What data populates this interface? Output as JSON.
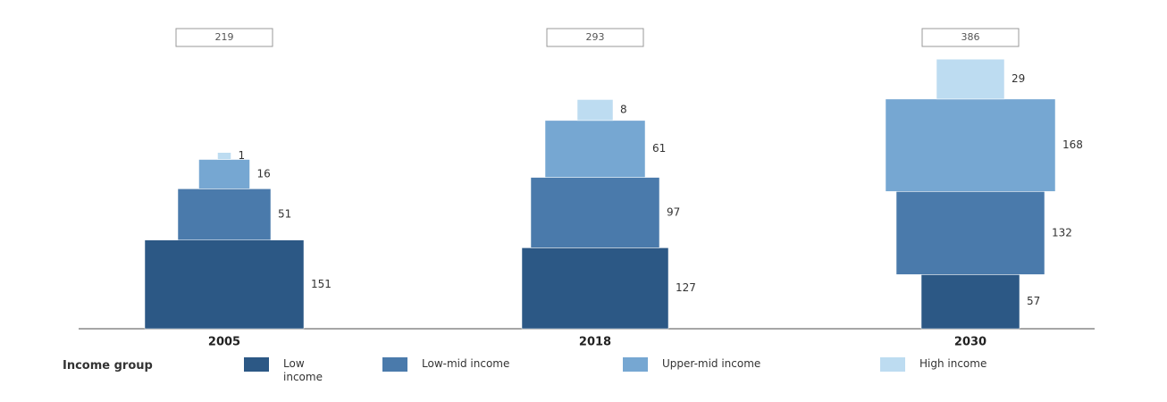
{
  "chart_data": {
    "type": "bar",
    "stacked": true,
    "legend_title": "Income group",
    "categories": [
      "2005",
      "2018",
      "2030"
    ],
    "totals": [
      219,
      293,
      386
    ],
    "series": [
      {
        "name": "Low income",
        "color": "#2c5885",
        "values": [
          151,
          127,
          57
        ]
      },
      {
        "name": "Low-mid income",
        "color": "#4a7aab",
        "values": [
          51,
          97,
          132
        ]
      },
      {
        "name": "Upper-mid income",
        "color": "#76a7d2",
        "values": [
          16,
          61,
          168
        ]
      },
      {
        "name": "High income",
        "color": "#bddcf1",
        "values": [
          1,
          8,
          29
        ]
      }
    ]
  }
}
